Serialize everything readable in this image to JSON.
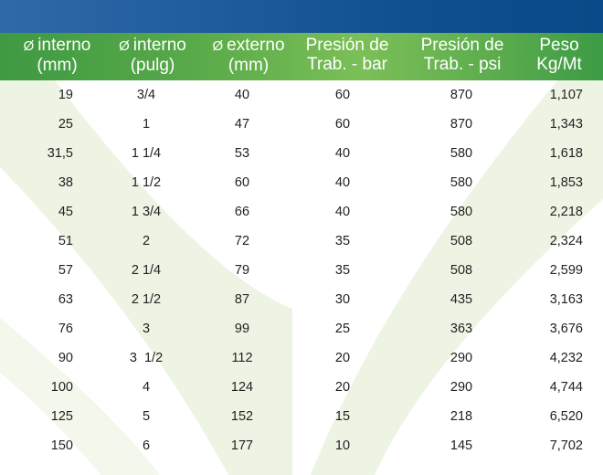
{
  "columns": [
    {
      "symbol": "Ø",
      "line1": "interno",
      "line2": "(mm)"
    },
    {
      "symbol": "Ø",
      "line1": "interno",
      "line2": "(pulg)"
    },
    {
      "symbol": "Ø",
      "line1": "externo",
      "line2": "(mm)"
    },
    {
      "symbol": "",
      "line1": "Presión de",
      "line2": "Trab. - bar"
    },
    {
      "symbol": "",
      "line1": "Presión de",
      "line2": "Trab. - psi"
    },
    {
      "symbol": "",
      "line1": "Peso",
      "line2": "Kg/Mt"
    }
  ],
  "rows": [
    [
      "19",
      "3/4",
      "40",
      "60",
      "870",
      "1,107"
    ],
    [
      "25",
      "1",
      "47",
      "60",
      "870",
      "1,343"
    ],
    [
      "31,5",
      "1 1/4",
      "53",
      "40",
      "580",
      "1,618"
    ],
    [
      "38",
      "1 1/2",
      "60",
      "40",
      "580",
      "1,853"
    ],
    [
      "45",
      "1 3/4",
      "66",
      "40",
      "580",
      "2,218"
    ],
    [
      "51",
      "2",
      "72",
      "35",
      "508",
      "2,324"
    ],
    [
      "57",
      "2 1/4",
      "79",
      "35",
      "508",
      "2,599"
    ],
    [
      "63",
      "2 1/2",
      "87",
      "30",
      "435",
      "3,163"
    ],
    [
      "76",
      "3",
      "99",
      "25",
      "363",
      "3,676"
    ],
    [
      "90",
      "3  1/2",
      "112",
      "20",
      "290",
      "4,232"
    ],
    [
      "100",
      "4",
      "124",
      "20",
      "290",
      "4,744"
    ],
    [
      "125",
      "5",
      "152",
      "15",
      "218",
      "6,520"
    ],
    [
      "150",
      "6",
      "177",
      "10",
      "145",
      "7,702"
    ]
  ],
  "colors": {
    "band": "#1f5c9c",
    "header_green": "#56a848",
    "watermark": "#eef4e4"
  }
}
